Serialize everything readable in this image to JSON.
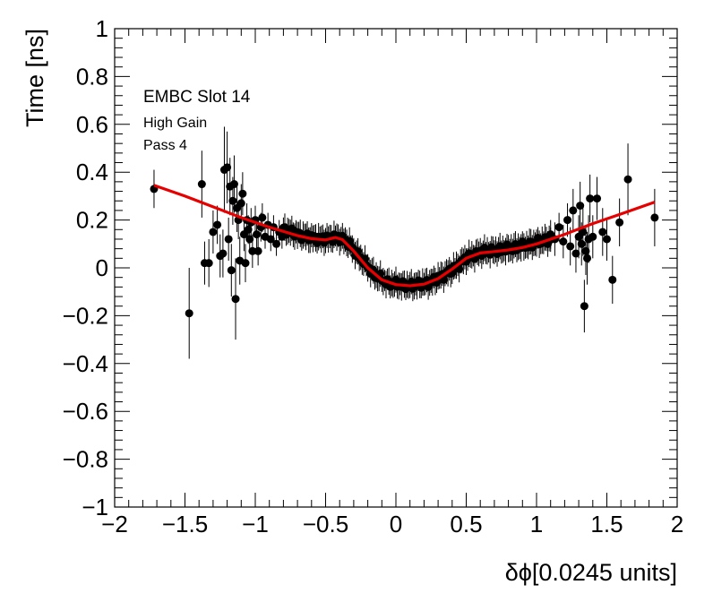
{
  "chart_data": {
    "type": "scatter",
    "title": "",
    "xlabel": "δϕ[0.0245 units]",
    "ylabel": "Time [ns]",
    "xlim": [
      -2,
      2
    ],
    "ylim": [
      -1,
      1
    ],
    "x_ticks": [
      "−2",
      "−1.5",
      "−1",
      "−0.5",
      "0",
      "0.5",
      "1",
      "1.5",
      "2"
    ],
    "y_ticks": [
      "−1",
      "−0.8",
      "−0.6",
      "−0.4",
      "−0.2",
      "0",
      "0.2",
      "0.4",
      "0.6",
      "0.8",
      "1"
    ],
    "grid": false,
    "annotations": [
      "EMBC Slot 14",
      "High Gain",
      "Pass 4"
    ],
    "marker_color": "#000000",
    "fit_color": "#e60000",
    "series": [
      {
        "kind": "points_with_errors",
        "points": [
          {
            "x": -1.72,
            "y": 0.33,
            "err": 0.08
          },
          {
            "x": -1.47,
            "y": -0.19,
            "err": 0.19
          },
          {
            "x": -1.38,
            "y": 0.35,
            "err": 0.14
          },
          {
            "x": -1.36,
            "y": 0.02,
            "err": 0.09
          },
          {
            "x": -1.33,
            "y": 0.02,
            "err": 0.1
          },
          {
            "x": -1.3,
            "y": 0.15,
            "err": 0.09
          },
          {
            "x": -1.27,
            "y": 0.18,
            "err": 0.08
          },
          {
            "x": -1.25,
            "y": 0.05,
            "err": 0.09
          },
          {
            "x": -1.23,
            "y": 0.06,
            "err": 0.1
          },
          {
            "x": -1.22,
            "y": 0.41,
            "err": 0.18
          },
          {
            "x": -1.2,
            "y": 0.42,
            "err": 0.15
          },
          {
            "x": -1.19,
            "y": 0.12,
            "err": 0.09
          },
          {
            "x": -1.18,
            "y": 0.34,
            "err": 0.12
          },
          {
            "x": -1.17,
            "y": -0.01,
            "err": 0.11
          },
          {
            "x": -1.16,
            "y": 0.28,
            "err": 0.1
          },
          {
            "x": -1.15,
            "y": 0.35,
            "err": 0.12
          },
          {
            "x": -1.14,
            "y": -0.13,
            "err": 0.17
          },
          {
            "x": -1.13,
            "y": 0.25,
            "err": 0.1
          },
          {
            "x": -1.12,
            "y": 0.2,
            "err": 0.08
          },
          {
            "x": -1.11,
            "y": 0.03,
            "err": 0.1
          },
          {
            "x": -1.1,
            "y": 0.27,
            "err": 0.08
          },
          {
            "x": -1.09,
            "y": 0.31,
            "err": 0.09
          },
          {
            "x": -1.08,
            "y": 0.14,
            "err": 0.07
          },
          {
            "x": -1.07,
            "y": 0.02,
            "err": 0.08
          },
          {
            "x": -1.06,
            "y": 0.2,
            "err": 0.07
          },
          {
            "x": -1.05,
            "y": 0.16,
            "err": 0.06
          },
          {
            "x": -1.04,
            "y": 0.12,
            "err": 0.06
          },
          {
            "x": -1.03,
            "y": 0.19,
            "err": 0.06
          },
          {
            "x": -1.02,
            "y": 0.07,
            "err": 0.07
          },
          {
            "x": -1.0,
            "y": 0.2,
            "err": 0.06
          },
          {
            "x": -0.99,
            "y": 0.14,
            "err": 0.06
          },
          {
            "x": -0.98,
            "y": 0.07,
            "err": 0.06
          },
          {
            "x": -0.96,
            "y": 0.17,
            "err": 0.06
          },
          {
            "x": -0.95,
            "y": 0.21,
            "err": 0.06
          },
          {
            "x": -0.93,
            "y": 0.13,
            "err": 0.05
          },
          {
            "x": -0.91,
            "y": 0.18,
            "err": 0.05
          },
          {
            "x": -0.89,
            "y": 0.12,
            "err": 0.05
          },
          {
            "x": -0.87,
            "y": 0.17,
            "err": 0.05
          },
          {
            "x": -0.85,
            "y": 0.1,
            "err": 0.05
          },
          {
            "x": -0.83,
            "y": 0.15,
            "err": 0.05
          },
          {
            "x": -0.81,
            "y": 0.13,
            "err": 0.05
          },
          {
            "x": 1.1,
            "y": 0.14,
            "err": 0.06
          },
          {
            "x": 1.13,
            "y": 0.12,
            "err": 0.07
          },
          {
            "x": 1.16,
            "y": 0.17,
            "err": 0.06
          },
          {
            "x": 1.19,
            "y": 0.11,
            "err": 0.07
          },
          {
            "x": 1.22,
            "y": 0.2,
            "err": 0.07
          },
          {
            "x": 1.24,
            "y": 0.09,
            "err": 0.08
          },
          {
            "x": 1.26,
            "y": 0.24,
            "err": 0.09
          },
          {
            "x": 1.28,
            "y": 0.06,
            "err": 0.08
          },
          {
            "x": 1.3,
            "y": 0.13,
            "err": 0.09
          },
          {
            "x": 1.31,
            "y": 0.26,
            "err": 0.1
          },
          {
            "x": 1.32,
            "y": 0.1,
            "err": 0.09
          },
          {
            "x": 1.33,
            "y": 0.15,
            "err": 0.1
          },
          {
            "x": 1.34,
            "y": -0.16,
            "err": 0.11
          },
          {
            "x": 1.35,
            "y": 0.07,
            "err": 0.1
          },
          {
            "x": 1.36,
            "y": 0.04,
            "err": 0.11
          },
          {
            "x": 1.37,
            "y": 0.12,
            "err": 0.1
          },
          {
            "x": 1.38,
            "y": 0.29,
            "err": 0.1
          },
          {
            "x": 1.4,
            "y": 0.13,
            "err": 0.09
          },
          {
            "x": 1.43,
            "y": 0.29,
            "err": 0.09
          },
          {
            "x": 1.47,
            "y": 0.15,
            "err": 0.1
          },
          {
            "x": 1.5,
            "y": 0.12,
            "err": 0.09
          },
          {
            "x": 1.54,
            "y": -0.05,
            "err": 0.1
          },
          {
            "x": 1.59,
            "y": 0.19,
            "err": 0.1
          },
          {
            "x": 1.65,
            "y": 0.37,
            "err": 0.15
          },
          {
            "x": 1.84,
            "y": 0.21,
            "err": 0.12
          }
        ],
        "dense_band": {
          "x_range": [
            -0.8,
            1.1
          ],
          "step": 0.01,
          "err": 0.05,
          "shape": [
            {
              "x": -0.8,
              "y": 0.16
            },
            {
              "x": -0.7,
              "y": 0.14
            },
            {
              "x": -0.6,
              "y": 0.125
            },
            {
              "x": -0.5,
              "y": 0.12
            },
            {
              "x": -0.42,
              "y": 0.13
            },
            {
              "x": -0.35,
              "y": 0.11
            },
            {
              "x": -0.25,
              "y": 0.04
            },
            {
              "x": -0.15,
              "y": -0.03
            },
            {
              "x": -0.05,
              "y": -0.065
            },
            {
              "x": 0.1,
              "y": -0.075
            },
            {
              "x": 0.25,
              "y": -0.06
            },
            {
              "x": 0.4,
              "y": -0.01
            },
            {
              "x": 0.5,
              "y": 0.04
            },
            {
              "x": 0.6,
              "y": 0.065
            },
            {
              "x": 0.75,
              "y": 0.075
            },
            {
              "x": 0.9,
              "y": 0.09
            },
            {
              "x": 1.0,
              "y": 0.105
            },
            {
              "x": 1.1,
              "y": 0.12
            }
          ]
        }
      },
      {
        "kind": "fit_curve",
        "points": [
          {
            "x": -1.72,
            "y": 0.345
          },
          {
            "x": -1.5,
            "y": 0.3
          },
          {
            "x": -1.3,
            "y": 0.255
          },
          {
            "x": -1.1,
            "y": 0.21
          },
          {
            "x": -0.9,
            "y": 0.17
          },
          {
            "x": -0.7,
            "y": 0.135
          },
          {
            "x": -0.6,
            "y": 0.122
          },
          {
            "x": -0.5,
            "y": 0.117
          },
          {
            "x": -0.43,
            "y": 0.127
          },
          {
            "x": -0.38,
            "y": 0.118
          },
          {
            "x": -0.3,
            "y": 0.07
          },
          {
            "x": -0.2,
            "y": 0.0
          },
          {
            "x": -0.1,
            "y": -0.05
          },
          {
            "x": 0.0,
            "y": -0.07
          },
          {
            "x": 0.1,
            "y": -0.075
          },
          {
            "x": 0.2,
            "y": -0.068
          },
          {
            "x": 0.3,
            "y": -0.045
          },
          {
            "x": 0.4,
            "y": -0.005
          },
          {
            "x": 0.5,
            "y": 0.04
          },
          {
            "x": 0.6,
            "y": 0.062
          },
          {
            "x": 0.7,
            "y": 0.068
          },
          {
            "x": 0.8,
            "y": 0.075
          },
          {
            "x": 0.9,
            "y": 0.085
          },
          {
            "x": 1.0,
            "y": 0.1
          },
          {
            "x": 1.2,
            "y": 0.14
          },
          {
            "x": 1.4,
            "y": 0.185
          },
          {
            "x": 1.6,
            "y": 0.225
          },
          {
            "x": 1.84,
            "y": 0.275
          }
        ]
      }
    ]
  }
}
